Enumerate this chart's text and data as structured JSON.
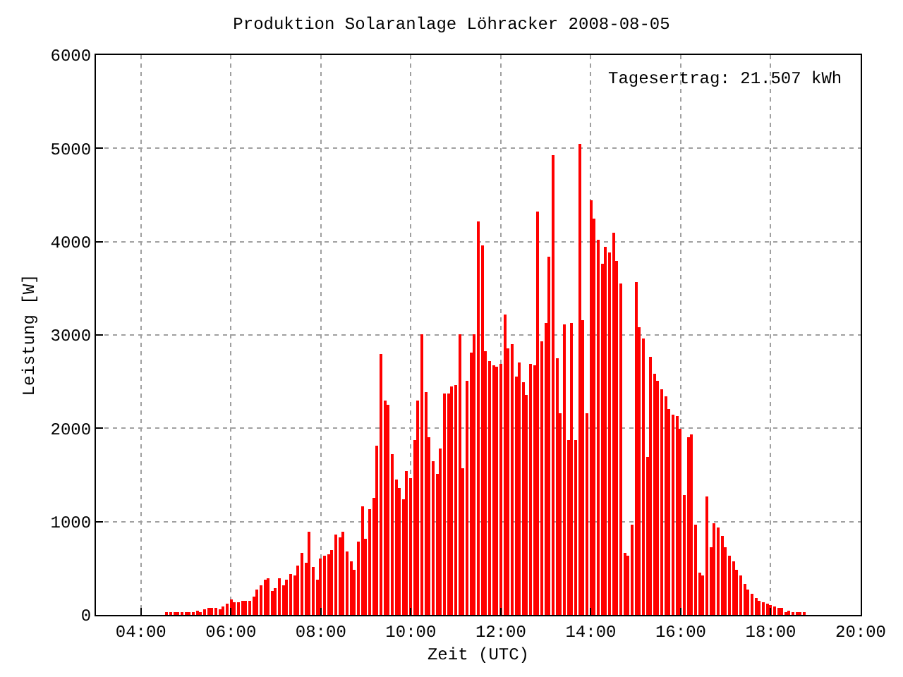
{
  "chart_data": {
    "type": "bar",
    "title": "Produktion Solaranlage Löhracker 2008-08-05",
    "xlabel": "Zeit (UTC)",
    "ylabel": "Leistung [W]",
    "annotations": [
      "Tagesertrag: 21.507 kWh"
    ],
    "x": [
      4.583,
      4.667,
      4.75,
      4.833,
      4.917,
      5,
      5.083,
      5.167,
      5.25,
      5.333,
      5.417,
      5.5,
      5.583,
      5.667,
      5.75,
      5.833,
      5.917,
      6,
      6.083,
      6.167,
      6.25,
      6.333,
      6.417,
      6.5,
      6.583,
      6.667,
      6.75,
      6.833,
      6.917,
      7,
      7.083,
      7.167,
      7.25,
      7.333,
      7.417,
      7.5,
      7.583,
      7.667,
      7.75,
      7.833,
      7.917,
      8,
      8.083,
      8.167,
      8.25,
      8.333,
      8.417,
      8.5,
      8.583,
      8.667,
      8.75,
      8.833,
      8.917,
      9,
      9.083,
      9.167,
      9.25,
      9.333,
      9.417,
      9.5,
      9.583,
      9.667,
      9.75,
      9.833,
      9.917,
      10,
      10.083,
      10.167,
      10.25,
      10.333,
      10.417,
      10.5,
      10.583,
      10.667,
      10.75,
      10.833,
      10.917,
      11,
      11.083,
      11.167,
      11.25,
      11.333,
      11.417,
      11.5,
      11.583,
      11.667,
      11.75,
      11.833,
      11.917,
      12,
      12.083,
      12.167,
      12.25,
      12.333,
      12.417,
      12.5,
      12.583,
      12.667,
      12.75,
      12.833,
      12.917,
      13,
      13.083,
      13.167,
      13.25,
      13.333,
      13.417,
      13.5,
      13.583,
      13.667,
      13.75,
      13.833,
      13.917,
      14,
      14.083,
      14.167,
      14.25,
      14.333,
      14.417,
      14.5,
      14.583,
      14.667,
      14.75,
      14.833,
      14.917,
      15,
      15.083,
      15.167,
      15.25,
      15.333,
      15.417,
      15.5,
      15.583,
      15.667,
      15.75,
      15.833,
      15.917,
      16,
      16.083,
      16.167,
      16.25,
      16.333,
      16.417,
      16.5,
      16.583,
      16.667,
      16.75,
      16.833,
      16.917,
      17,
      17.083,
      17.167,
      17.25,
      17.333,
      17.417,
      17.5,
      17.583,
      17.667,
      17.75,
      17.833,
      17.917,
      18,
      18.083,
      18.167,
      18.25,
      18.333,
      18.417,
      18.5,
      18.583,
      18.667,
      18.75
    ],
    "series": [
      {
        "color": "#ff0000",
        "values": [
          20,
          20,
          20,
          20,
          20,
          30,
          30,
          30,
          50,
          20,
          60,
          80,
          80,
          80,
          60,
          90,
          120,
          170,
          140,
          140,
          150,
          150,
          150,
          200,
          270,
          320,
          380,
          390,
          260,
          290,
          390,
          320,
          380,
          440,
          420,
          530,
          660,
          560,
          890,
          510,
          380,
          600,
          630,
          650,
          690,
          860,
          830,
          890,
          680,
          570,
          480,
          790,
          1160,
          810,
          1130,
          1250,
          1820,
          2790,
          2300,
          2250,
          1720,
          1450,
          1360,
          1240,
          1540,
          1460,
          1870,
          2300,
          3010,
          2390,
          1900,
          1640,
          1510,
          1790,
          2370,
          2370,
          2450,
          2460,
          3010,
          1570,
          2510,
          2810,
          3010,
          4210,
          3960,
          2820,
          2720,
          2670,
          2660,
          2690,
          3220,
          2850,
          2900,
          2550,
          2700,
          2490,
          2360,
          2690,
          2670,
          4330,
          2930,
          3130,
          3840,
          4930,
          2750,
          2160,
          3120,
          1880,
          3130,
          1870,
          5050,
          3160,
          2160,
          4450,
          4240,
          4020,
          3760,
          3940,
          3880,
          4090,
          3790,
          3550,
          670,
          640,
          970,
          3570,
          3080,
          2960,
          1690,
          2760,
          2580,
          2510,
          2420,
          2340,
          2210,
          2150,
          2130,
          1990,
          1280,
          1910,
          1940,
          970,
          450,
          420,
          1270,
          730,
          990,
          930,
          840,
          730,
          630,
          570,
          480,
          420,
          340,
          270,
          220,
          180,
          150,
          130,
          120,
          100,
          90,
          80,
          80,
          20,
          50,
          30,
          30,
          20,
          20
        ]
      }
    ],
    "xlim": [
      3,
      20
    ],
    "xticks": [
      {
        "value": 4,
        "label": "04:00"
      },
      {
        "value": 6,
        "label": "06:00"
      },
      {
        "value": 8,
        "label": "08:00"
      },
      {
        "value": 10,
        "label": "10:00"
      },
      {
        "value": 12,
        "label": "12:00"
      },
      {
        "value": 14,
        "label": "14:00"
      },
      {
        "value": 16,
        "label": "16:00"
      },
      {
        "value": 18,
        "label": "18:00"
      },
      {
        "value": 20,
        "label": "20:00"
      }
    ],
    "ylim": [
      0,
      6000
    ],
    "yticks": [
      0,
      1000,
      2000,
      3000,
      4000,
      5000,
      6000
    ],
    "grid": true
  }
}
